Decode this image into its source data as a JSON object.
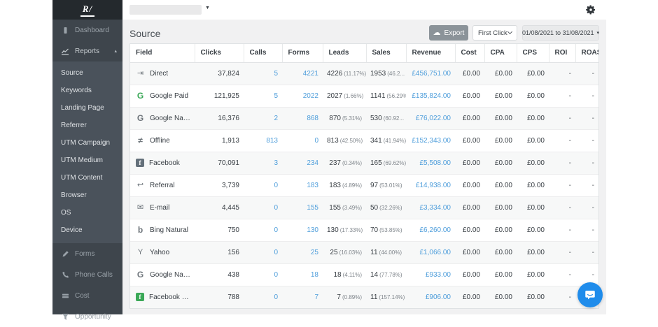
{
  "brand": {
    "logo_text": "R/"
  },
  "sidebar": {
    "main_items": [
      {
        "id": "dashboard",
        "icon": "dashboard-icon",
        "label": "Dashboard"
      },
      {
        "id": "reports",
        "icon": "reports-icon",
        "label": "Reports",
        "expanded": true,
        "caret": "▴"
      }
    ],
    "report_items": [
      "Source",
      "Keywords",
      "Landing Page",
      "Referrer",
      "UTM Campaign",
      "UTM Medium",
      "UTM Content",
      "Browser",
      "OS",
      "Device"
    ],
    "bottom_items": [
      {
        "id": "forms",
        "icon": "pencil-icon",
        "label": "Forms"
      },
      {
        "id": "phone-calls",
        "icon": "phone-icon",
        "label": "Phone Calls"
      },
      {
        "id": "cost",
        "icon": "cost-icon",
        "label": "Cost"
      },
      {
        "id": "opportunity",
        "icon": "funnel-icon",
        "label": "Opportunity"
      }
    ]
  },
  "topbar": {
    "account_select_value": "",
    "caret": "▼"
  },
  "page": {
    "title": "Source"
  },
  "toolbar": {
    "export_label": "Export",
    "attribution_value": "First Click",
    "date_range": "01/08/2021 to 31/08/2021",
    "date_caret": "▾"
  },
  "colors": {
    "accent_blue": "#4f9edb",
    "green": "#3aa857",
    "chat_blue": "#1f8ceb"
  },
  "icon_glyphs": {
    "direct-icon": "⇥",
    "google-paid-icon": "G",
    "google-natural-icon": "G",
    "offline-icon": "≠",
    "facebook-icon": "f",
    "referral-icon": "↩",
    "email-icon": "✉",
    "bing-icon": "b",
    "yahoo-icon": "Y",
    "facebook-paid-icon": "f"
  },
  "table": {
    "columns": [
      "Field",
      "Clicks",
      "Calls",
      "Forms",
      "Leads",
      "Sales",
      "Revenue",
      "Cost",
      "CPA",
      "CPS",
      "ROI",
      "ROAS"
    ],
    "rows": [
      {
        "icon": "direct-icon",
        "field": "Direct",
        "clicks": "37,824",
        "calls": "5",
        "forms": "4221",
        "leads": "4226",
        "leads_pct": "(11.17%)",
        "sales": "1953",
        "sales_pct": "(46.2...",
        "revenue": "£456,751.00",
        "cost": "£0.00",
        "cpa": "£0.00",
        "cps": "£0.00",
        "roi": "-",
        "roas": "-"
      },
      {
        "icon": "google-paid-icon",
        "field": "Google Paid",
        "clicks": "121,925",
        "calls": "5",
        "forms": "2022",
        "leads": "2027",
        "leads_pct": "(1.66%)",
        "sales": "1141",
        "sales_pct": "(56.29%)",
        "revenue": "£135,824.00",
        "cost": "£0.00",
        "cpa": "£0.00",
        "cps": "£0.00",
        "roi": "-",
        "roas": "-"
      },
      {
        "icon": "google-natural-icon",
        "field": "Google Natural",
        "clicks": "16,376",
        "calls": "2",
        "forms": "868",
        "leads": "870",
        "leads_pct": "(5.31%)",
        "sales": "530",
        "sales_pct": "(60.92...",
        "revenue": "£76,022.00",
        "cost": "£0.00",
        "cpa": "£0.00",
        "cps": "£0.00",
        "roi": "-",
        "roas": "-"
      },
      {
        "icon": "offline-icon",
        "field": "Offline",
        "clicks": "1,913",
        "calls": "813",
        "forms": "0",
        "leads": "813",
        "leads_pct": "(42.50%)",
        "sales": "341",
        "sales_pct": "(41.94%)",
        "revenue": "£152,343.00",
        "cost": "£0.00",
        "cpa": "£0.00",
        "cps": "£0.00",
        "roi": "-",
        "roas": "-"
      },
      {
        "icon": "facebook-icon",
        "field": "Facebook",
        "clicks": "70,091",
        "calls": "3",
        "forms": "234",
        "leads": "237",
        "leads_pct": "(0.34%)",
        "sales": "165",
        "sales_pct": "(69.62%)",
        "revenue": "£5,508.00",
        "cost": "£0.00",
        "cpa": "£0.00",
        "cps": "£0.00",
        "roi": "-",
        "roas": "-"
      },
      {
        "icon": "referral-icon",
        "field": "Referral",
        "clicks": "3,739",
        "calls": "0",
        "forms": "183",
        "leads": "183",
        "leads_pct": "(4.89%)",
        "sales": "97",
        "sales_pct": "(53.01%)",
        "revenue": "£14,938.00",
        "cost": "£0.00",
        "cpa": "£0.00",
        "cps": "£0.00",
        "roi": "-",
        "roas": "-"
      },
      {
        "icon": "email-icon",
        "field": "E-mail",
        "clicks": "4,445",
        "calls": "0",
        "forms": "155",
        "leads": "155",
        "leads_pct": "(3.49%)",
        "sales": "50",
        "sales_pct": "(32.26%)",
        "revenue": "£3,334.00",
        "cost": "£0.00",
        "cpa": "£0.00",
        "cps": "£0.00",
        "roi": "-",
        "roas": "-"
      },
      {
        "icon": "bing-icon",
        "field": "Bing Natural",
        "clicks": "750",
        "calls": "0",
        "forms": "130",
        "leads": "130",
        "leads_pct": "(17.33%)",
        "sales": "70",
        "sales_pct": "(53.85%)",
        "revenue": "£6,260.00",
        "cost": "£0.00",
        "cpa": "£0.00",
        "cps": "£0.00",
        "roi": "-",
        "roas": "-"
      },
      {
        "icon": "yahoo-icon",
        "field": "Yahoo",
        "clicks": "156",
        "calls": "0",
        "forms": "25",
        "leads": "25",
        "leads_pct": "(16.03%)",
        "sales": "11",
        "sales_pct": "(44.00%)",
        "revenue": "£1,066.00",
        "cost": "£0.00",
        "cpa": "£0.00",
        "cps": "£0.00",
        "roi": "-",
        "roas": "-"
      },
      {
        "icon": "google-natural-icon",
        "field": "Google Natural",
        "clicks": "438",
        "calls": "0",
        "forms": "18",
        "leads": "18",
        "leads_pct": "(4.11%)",
        "sales": "14",
        "sales_pct": "(77.78%)",
        "revenue": "£933.00",
        "cost": "£0.00",
        "cpa": "£0.00",
        "cps": "£0.00",
        "roi": "-",
        "roas": "-"
      },
      {
        "icon": "facebook-paid-icon",
        "field": "Facebook Paid",
        "clicks": "788",
        "calls": "0",
        "forms": "7",
        "leads": "7",
        "leads_pct": "(0.89%)",
        "sales": "11",
        "sales_pct": "(157.14%)",
        "revenue": "£906.00",
        "cost": "£0.00",
        "cpa": "£0.00",
        "cps": "£0.00",
        "roi": "-",
        "roas": "-"
      }
    ]
  }
}
